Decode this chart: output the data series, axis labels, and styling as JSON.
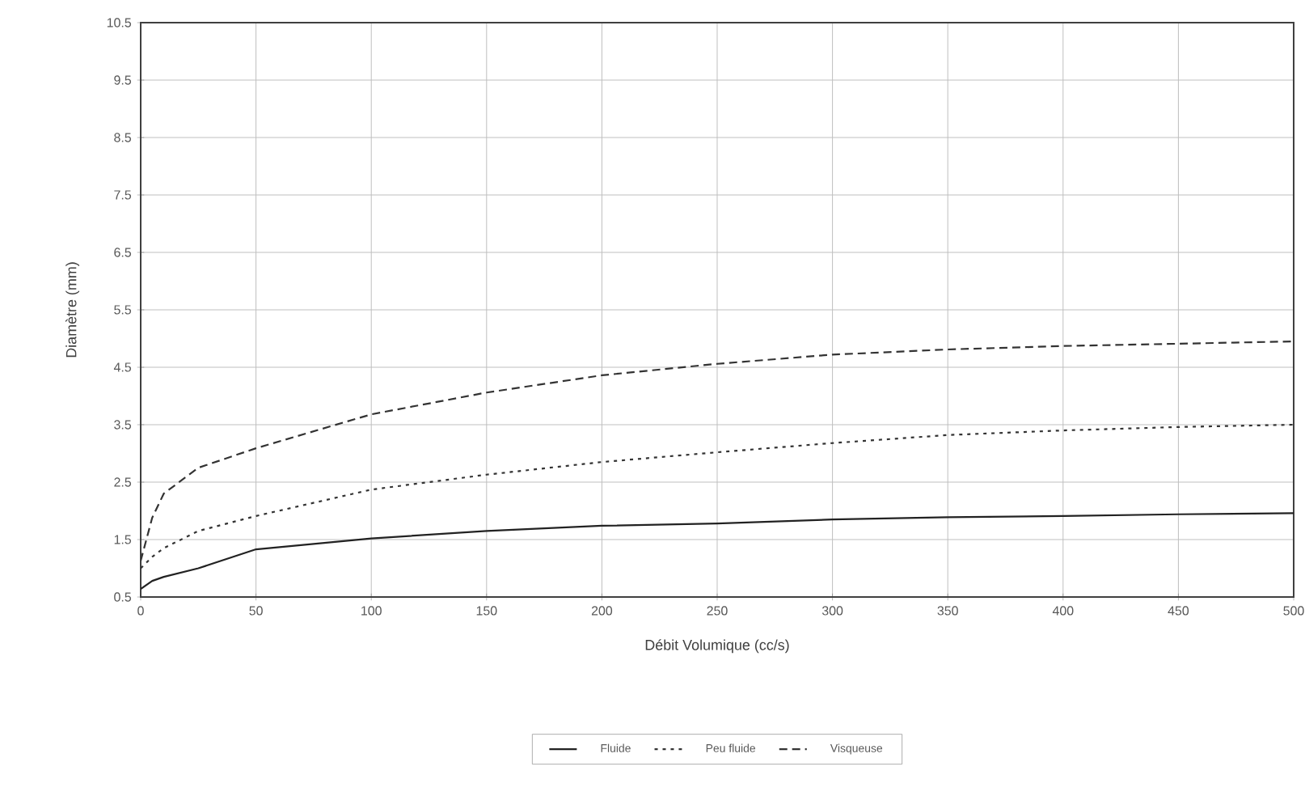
{
  "chart_data": {
    "type": "line",
    "xlabel": "Débit Volumique (cc/s)",
    "ylabel": "Diamètre (mm)",
    "xlim": [
      0,
      500
    ],
    "ylim": [
      0.5,
      10.5
    ],
    "xticks": [
      0,
      50,
      100,
      150,
      200,
      250,
      300,
      350,
      400,
      450,
      500
    ],
    "yticks": [
      0.5,
      1.5,
      2.5,
      3.5,
      4.5,
      5.5,
      6.5,
      7.5,
      8.5,
      9.5,
      10.5
    ],
    "grid": true,
    "legend": "bottom",
    "marker": "none",
    "x": [
      0,
      5,
      10,
      25,
      50,
      100,
      150,
      200,
      250,
      300,
      350,
      400,
      450,
      500
    ],
    "series": [
      {
        "name": "Fluide",
        "color": "#222222",
        "line_style": "solid",
        "values": [
          0.64,
          0.78,
          0.85,
          1.0,
          1.33,
          1.52,
          1.65,
          1.74,
          1.78,
          1.85,
          1.89,
          1.91,
          1.94,
          1.96
        ]
      },
      {
        "name": "Peu fluide",
        "color": "#333333",
        "line_style": "dotted",
        "values": [
          1.0,
          1.2,
          1.35,
          1.65,
          1.91,
          2.37,
          2.63,
          2.85,
          3.02,
          3.18,
          3.32,
          3.4,
          3.46,
          3.5
        ]
      },
      {
        "name": "Visqueuse",
        "color": "#333333",
        "line_style": "dashed",
        "values": [
          1.13,
          1.88,
          2.3,
          2.75,
          3.09,
          3.68,
          4.06,
          4.36,
          4.56,
          4.72,
          4.81,
          4.87,
          4.91,
          4.95
        ]
      }
    ]
  }
}
